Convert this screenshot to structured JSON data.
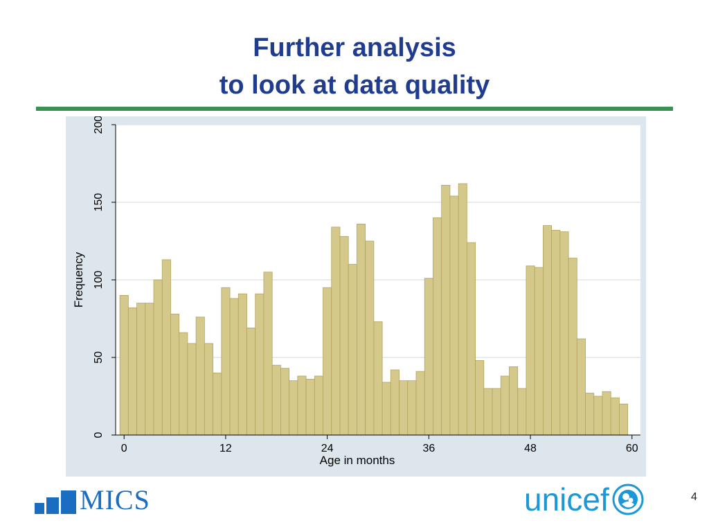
{
  "slide": {
    "title_line1": "Further analysis",
    "title_line2": "to look at data quality",
    "page_number": "4"
  },
  "logos": {
    "mics": "MICS",
    "unicef": "unicef"
  },
  "colors": {
    "title": "#1f3c8f",
    "rule": "#3a9152",
    "plot_background": "#dde6ec",
    "bar_fill": "#d4c98a",
    "bar_stroke": "#b0a45e",
    "brand_blue": "#1a6dc0",
    "unicef_blue": "#1c98d6"
  },
  "chart_data": {
    "type": "bar",
    "title": "",
    "xlabel": "Age in months",
    "ylabel": "Frequency",
    "xlim": [
      -1,
      61
    ],
    "ylim": [
      0,
      200
    ],
    "xticks": [
      0,
      12,
      24,
      36,
      48,
      60
    ],
    "yticks": [
      0,
      50,
      100,
      150,
      200
    ],
    "grid": true,
    "x": [
      0,
      1,
      2,
      3,
      4,
      5,
      6,
      7,
      8,
      9,
      10,
      11,
      12,
      13,
      14,
      15,
      16,
      17,
      18,
      19,
      20,
      21,
      22,
      23,
      24,
      25,
      26,
      27,
      28,
      29,
      30,
      31,
      32,
      33,
      34,
      35,
      36,
      37,
      38,
      39,
      40,
      41,
      42,
      43,
      44,
      45,
      46,
      47,
      48,
      49,
      50,
      51,
      52,
      53,
      54,
      55,
      56,
      57,
      58,
      59
    ],
    "values": [
      90,
      82,
      85,
      85,
      100,
      113,
      78,
      66,
      59,
      76,
      59,
      40,
      95,
      88,
      91,
      69,
      91,
      105,
      45,
      43,
      35,
      38,
      36,
      38,
      95,
      134,
      128,
      110,
      136,
      125,
      73,
      34,
      42,
      35,
      35,
      41,
      101,
      140,
      161,
      154,
      162,
      124,
      48,
      30,
      30,
      38,
      44,
      30,
      109,
      108,
      135,
      132,
      131,
      114,
      62,
      27,
      25,
      28,
      24,
      20
    ]
  }
}
